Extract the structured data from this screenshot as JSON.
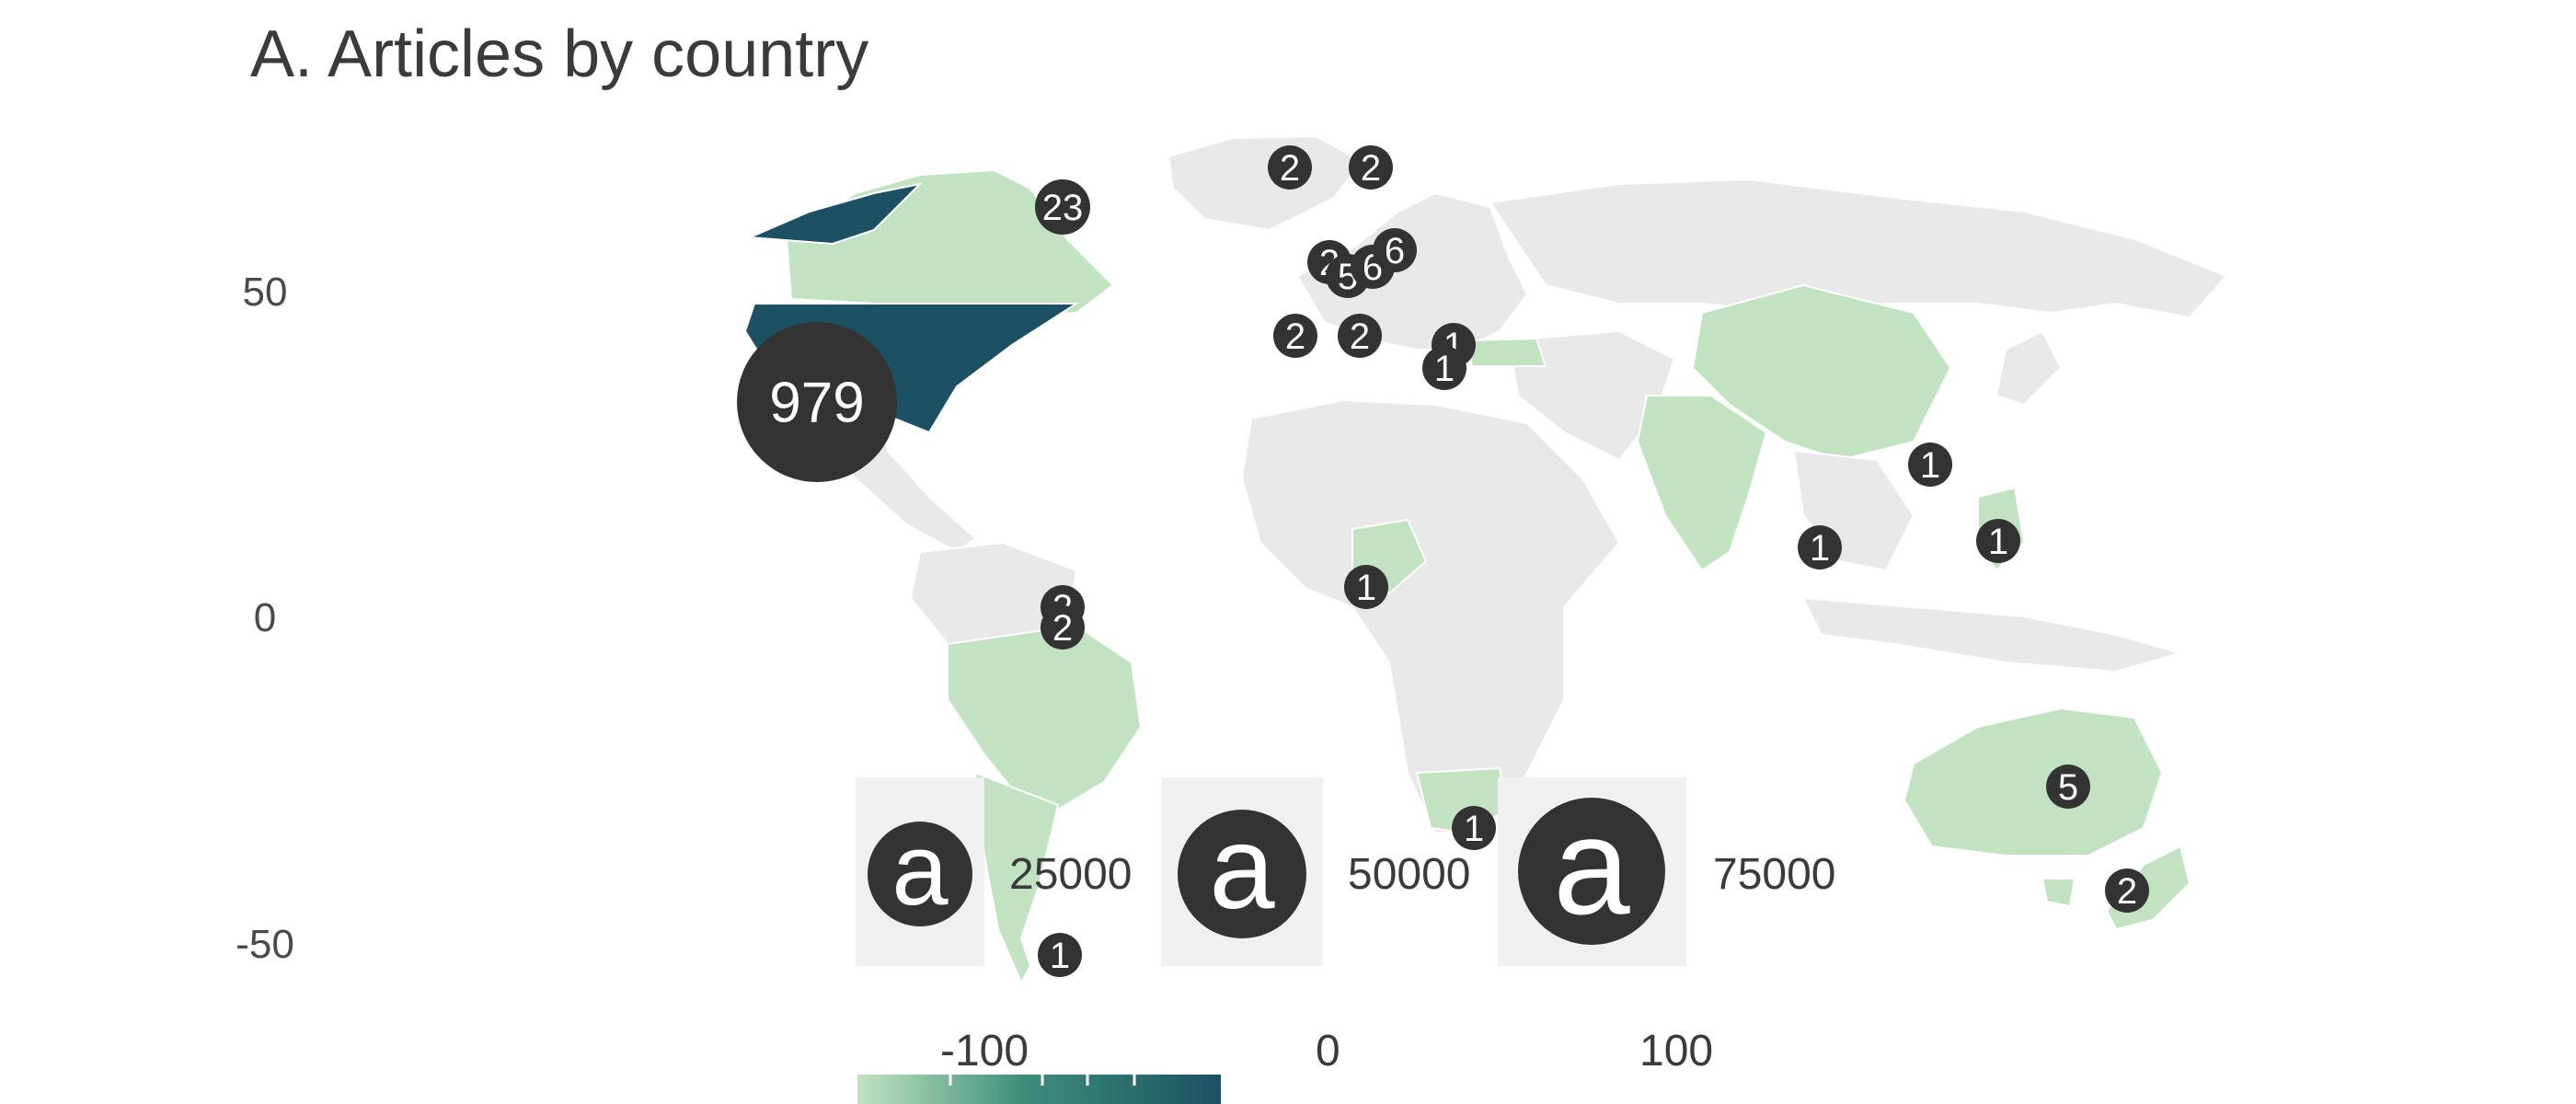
{
  "title": "A. Articles by country",
  "colors": {
    "ocean": "#ffffff",
    "land_no_data": "#e8e8e8",
    "country_low": "#c2e3c2",
    "country_high": "#1c5164",
    "border": "#ffffff",
    "bubble_fill": "#333333",
    "bubble_text": "#ffffff"
  },
  "y_axis_ticks": [
    "50",
    "0",
    "-50"
  ],
  "highlighted_countries": [
    "United States",
    "Canada",
    "Brazil",
    "Argentina",
    "Nigeria",
    "South Africa",
    "China",
    "India",
    "Philippines",
    "Australia",
    "New Zealand",
    "Turkey",
    "United Kingdom",
    "Germany",
    "Sweden",
    "Norway",
    "Spain",
    "Italy",
    "Greece",
    "Taiwan"
  ],
  "bubbles": [
    {
      "country": "United States",
      "label": "979",
      "count": 979
    },
    {
      "country": "Canada",
      "label": "23",
      "count": 23
    },
    {
      "country": "Iceland",
      "label": "2",
      "count": 2
    },
    {
      "country": "Norway",
      "label": "2",
      "count": 2
    },
    {
      "country": "Netherlands",
      "label": "2",
      "count": 2
    },
    {
      "country": "Belgium",
      "label": "5",
      "count": 5
    },
    {
      "country": "Germany",
      "label": "6",
      "count": 6
    },
    {
      "country": "Denmark",
      "label": "6",
      "count": 6
    },
    {
      "country": "Spain",
      "label": "2",
      "count": 2
    },
    {
      "country": "Italy",
      "label": "2",
      "count": 2
    },
    {
      "country": "Greece",
      "label": "1",
      "count": 1
    },
    {
      "country": "Cyprus",
      "label": "1",
      "count": 1
    },
    {
      "country": "Taiwan",
      "label": "1",
      "count": 1
    },
    {
      "country": "Sri Lanka",
      "label": "1",
      "count": 1
    },
    {
      "country": "Philippines",
      "label": "1",
      "count": 1
    },
    {
      "country": "Nigeria",
      "label": "1",
      "count": 1
    },
    {
      "country": "Guyana",
      "label": "2",
      "count": 2
    },
    {
      "country": "Suriname",
      "label": "2",
      "count": 2
    },
    {
      "country": "South Africa",
      "label": "1",
      "count": 1
    },
    {
      "country": "Australia",
      "label": "5",
      "count": 5
    },
    {
      "country": "New Zealand",
      "label": "2",
      "count": 2
    },
    {
      "country": "Chile",
      "label": "1",
      "count": 1
    }
  ],
  "size_legend": {
    "glyph": "a",
    "labels": [
      "25000",
      "50000",
      "75000"
    ]
  },
  "color_legend": {
    "ticks": [
      "-100",
      "0",
      "100"
    ]
  }
}
